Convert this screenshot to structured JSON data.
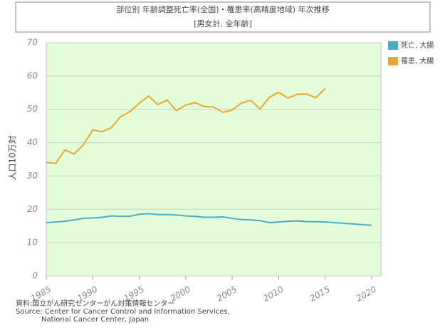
{
  "chart_data": {
    "type": "line",
    "title": "部位別 年齢調整死亡率(全国)・罹患率(高精度地域) 年次推移",
    "subtitle": "[男女計, 全年齢]",
    "y_label": "人口10万対",
    "source": [
      "資料:国立がん研究センターがん対策情報センター",
      "Source: Center for Cancer Control and Information Services,",
      "National Cancer Center, Japan"
    ],
    "x": [
      1985,
      1986,
      1987,
      1988,
      1989,
      1990,
      1991,
      1992,
      1993,
      1994,
      1995,
      1996,
      1997,
      1998,
      1999,
      2000,
      2001,
      2002,
      2003,
      2004,
      2005,
      2006,
      2007,
      2008,
      2009,
      2010,
      2011,
      2012,
      2013,
      2014,
      2015,
      2016,
      2017,
      2018,
      2019,
      2020
    ],
    "series": [
      {
        "name": "死亡, 大腸",
        "color": "#4bacc6",
        "values": [
          16.0,
          16.2,
          16.4,
          16.8,
          17.3,
          17.4,
          17.6,
          18.0,
          17.9,
          17.9,
          18.5,
          18.7,
          18.4,
          18.4,
          18.3,
          18.0,
          17.9,
          17.6,
          17.6,
          17.7,
          17.3,
          16.9,
          16.8,
          16.6,
          16.0,
          16.2,
          16.4,
          16.5,
          16.3,
          16.3,
          16.2,
          16.0,
          15.8,
          15.6,
          15.4,
          15.2
        ]
      },
      {
        "name": "罹患, 大腸",
        "color": "#e8a530",
        "values": [
          34.1,
          33.7,
          37.8,
          36.6,
          39.4,
          43.8,
          43.3,
          44.5,
          47.8,
          49.3,
          51.8,
          54.0,
          51.4,
          52.8,
          49.6,
          51.3,
          52.0,
          50.8,
          50.7,
          49.1,
          49.8,
          51.9,
          52.7,
          50.1,
          53.6,
          55.1,
          53.4,
          54.5,
          54.6,
          53.5,
          56.2,
          null,
          null,
          null,
          null,
          null
        ]
      }
    ],
    "xlim": [
      1985,
      2021
    ],
    "xticks": [
      1985,
      1990,
      1995,
      2000,
      2005,
      2010,
      2015,
      2020
    ],
    "ylim": [
      0,
      70
    ],
    "yticks": [
      0,
      10,
      20,
      30,
      40,
      50,
      60,
      70
    ],
    "grid": true,
    "legend": "right",
    "background": "#e2fdd8"
  }
}
